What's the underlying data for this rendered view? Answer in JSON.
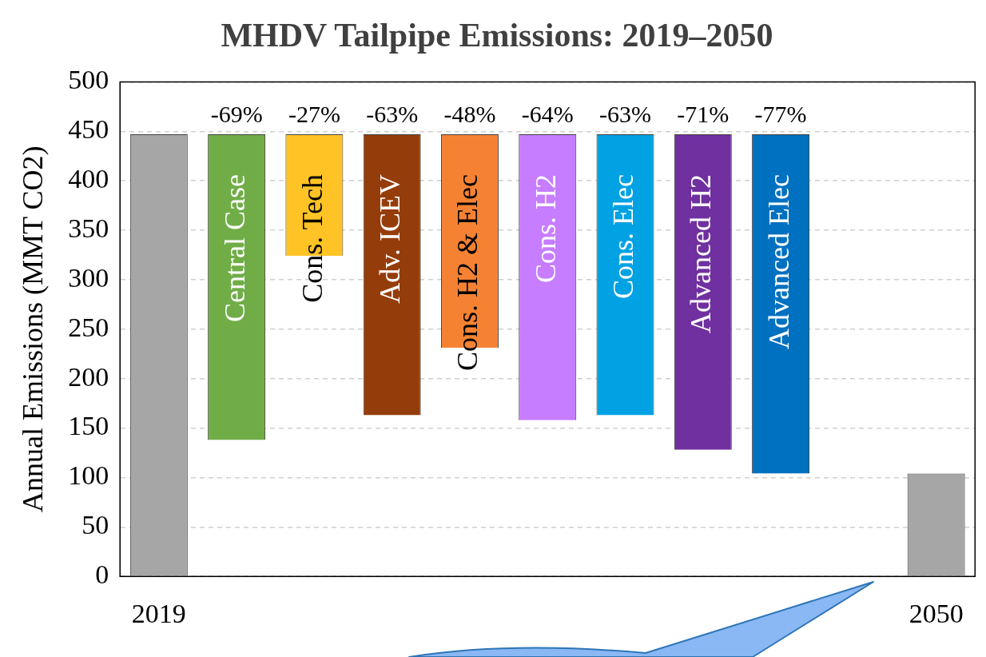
{
  "chart_data": {
    "type": "bar",
    "title": "MHDV Tailpipe Emissions: 2019–2050",
    "ylabel": "Annual Emissions (MMT CO2)",
    "categories": [
      "2019",
      null,
      null,
      null,
      null,
      null,
      null,
      null,
      null,
      null,
      "2050"
    ],
    "series": [
      {
        "color": "#a6a6a6",
        "values": [
          447,
          null,
          null,
          null,
          null,
          null,
          null,
          null,
          null,
          null,
          104
        ],
        "base": [
          0,
          null,
          null,
          null,
          null,
          null,
          null,
          null,
          null,
          null,
          0
        ]
      },
      {
        "name": "Central Case",
        "color": "#70ad47",
        "values": [
          null,
          309,
          null,
          null,
          null,
          null,
          null,
          null,
          null,
          null,
          null
        ],
        "base": [
          null,
          138,
          null,
          null,
          null,
          null,
          null,
          null,
          null,
          null,
          null
        ]
      },
      {
        "name": "Cons. Tech",
        "color": "#ffc325",
        "values": [
          null,
          null,
          123,
          null,
          null,
          null,
          null,
          null,
          null,
          null,
          null
        ],
        "base": [
          null,
          null,
          324,
          null,
          null,
          null,
          null,
          null,
          null,
          null,
          null
        ]
      },
      {
        "name": "Adv. ICEV",
        "color": "#953d0a",
        "values": [
          null,
          null,
          null,
          284,
          null,
          null,
          null,
          null,
          null,
          null,
          null
        ],
        "base": [
          null,
          null,
          null,
          163,
          null,
          null,
          null,
          null,
          null,
          null,
          null
        ]
      },
      {
        "name": "Cons. H2 & Elec",
        "color": "#f58233",
        "values": [
          null,
          null,
          null,
          null,
          216,
          null,
          null,
          null,
          null,
          null,
          null
        ],
        "base": [
          null,
          null,
          null,
          null,
          231,
          null,
          null,
          null,
          null,
          null,
          null
        ]
      },
      {
        "name": "Cons. H2",
        "color": "#c77dff",
        "values": [
          null,
          null,
          null,
          null,
          null,
          289,
          null,
          null,
          null,
          null,
          null
        ],
        "base": [
          null,
          null,
          null,
          null,
          null,
          158,
          null,
          null,
          null,
          null,
          null
        ]
      },
      {
        "name": "Cons. Elec",
        "color": "#00a2e3",
        "values": [
          null,
          null,
          null,
          null,
          null,
          null,
          284,
          null,
          null,
          null,
          null
        ],
        "base": [
          null,
          null,
          null,
          null,
          null,
          null,
          163,
          null,
          null,
          null,
          null
        ]
      },
      {
        "name": "Advanced H2",
        "color": "#7030a0",
        "values": [
          null,
          null,
          null,
          null,
          null,
          null,
          null,
          319,
          null,
          null,
          null
        ],
        "base": [
          null,
          null,
          null,
          null,
          null,
          null,
          null,
          128,
          null,
          null,
          null
        ]
      },
      {
        "name": "Advanced Elec",
        "color": "#0070c0",
        "values": [
          null,
          null,
          null,
          null,
          null,
          null,
          null,
          null,
          343,
          null,
          null
        ],
        "base": [
          null,
          null,
          null,
          null,
          null,
          null,
          null,
          null,
          104,
          null,
          null
        ]
      }
    ],
    "annotations": [
      "-69%",
      "-27%",
      "-63%",
      "-48%",
      "-64%",
      "-63%",
      "-71%",
      "-77%"
    ],
    "ylim": [
      0,
      500
    ],
    "yticks": [
      0,
      50,
      100,
      150,
      200,
      250,
      300,
      350,
      400,
      450,
      500
    ],
    "grid": "y",
    "legend": false
  }
}
